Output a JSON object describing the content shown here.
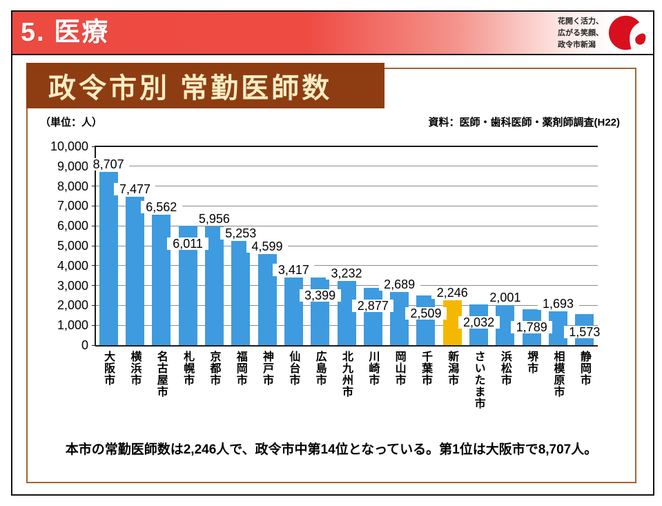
{
  "header": {
    "title": "5. 医療",
    "slogan_lines": [
      "花開く活力、",
      "広がる笑顔、",
      "政令市新潟"
    ]
  },
  "chart_data": {
    "type": "bar",
    "title": "政令市別 常勤医師数",
    "unit_label": "（単位：人）",
    "source": "資料：医師・歯科医師・薬剤師調査(H22)",
    "categories": [
      "大阪市",
      "横浜市",
      "名古屋市",
      "札幌市",
      "京都市",
      "福岡市",
      "神戸市",
      "仙台市",
      "広島市",
      "北九州市",
      "川崎市",
      "岡山市",
      "千葉市",
      "新潟市",
      "さいたま市",
      "浜松市",
      "堺市",
      "相模原市",
      "静岡市"
    ],
    "values": [
      8707,
      7477,
      6562,
      6011,
      5956,
      5253,
      4599,
      3417,
      3399,
      3232,
      2877,
      2689,
      2509,
      2246,
      2032,
      2001,
      1789,
      1693,
      1573
    ],
    "data_label_positions": [
      "above",
      "above",
      "above",
      "below",
      "above",
      "above",
      "above",
      "above",
      "below",
      "above",
      "below",
      "above",
      "below",
      "above",
      "below",
      "above",
      "below",
      "above",
      "below"
    ],
    "highlight_index": 13,
    "bar_color": "#3E9BDF",
    "highlight_color": "#F5B800",
    "ylim": [
      0,
      10000
    ],
    "ytick_interval": 1000,
    "ytick_labels": [
      "0",
      "1,000",
      "2,000",
      "3,000",
      "4,000",
      "5,000",
      "6,000",
      "7,000",
      "8,000",
      "9,000",
      "10,000"
    ],
    "grid": true,
    "legend_position": "none",
    "xlabel": "",
    "ylabel": ""
  },
  "footer": {
    "note": "本市の常勤医師数は2,246人で、政令市中第14位となっている。第1位は大阪市で8,707人。"
  },
  "colors": {
    "header_red": "#EE4B43",
    "banner_brown": "#8E3D12",
    "banner_text": "#F7EDC4",
    "box_border": "#A9612F",
    "gridline_gray": "#8A8A8A",
    "logo_red": "#D8101E"
  }
}
